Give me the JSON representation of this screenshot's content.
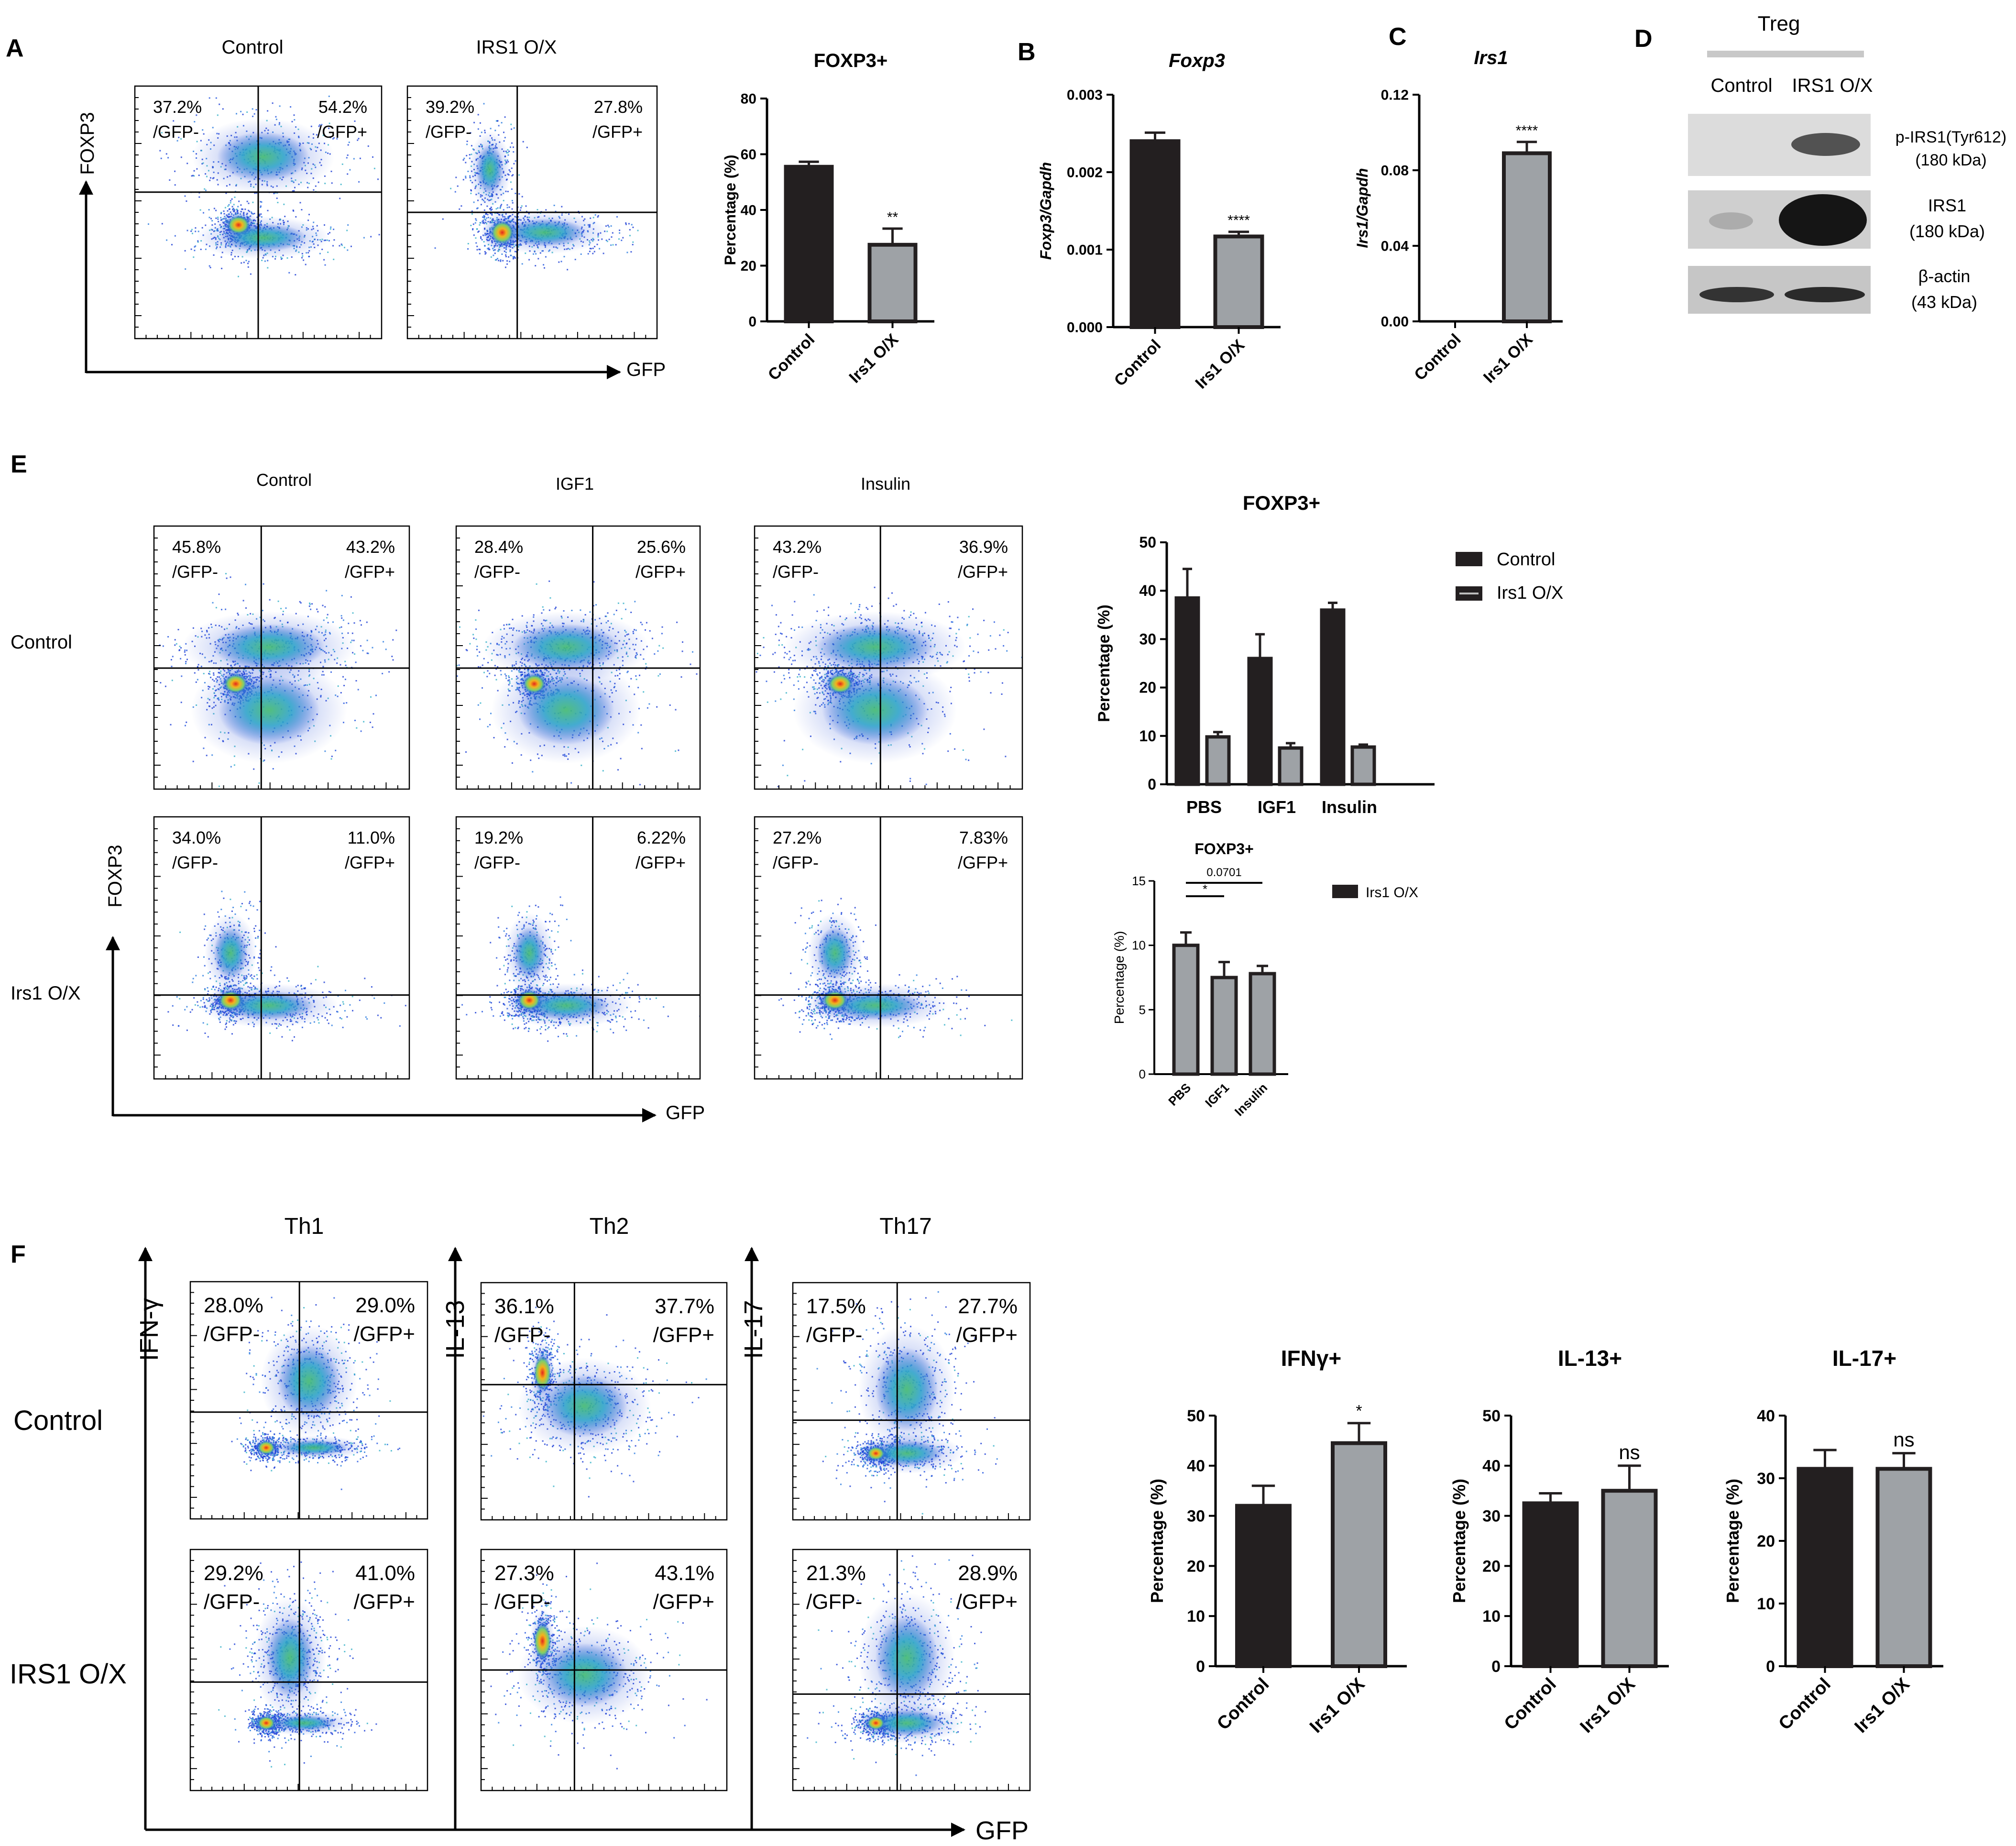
{
  "panel_labels": {
    "a": "A",
    "b": "B",
    "c": "C",
    "d": "D",
    "e": "E",
    "f": "F"
  },
  "axis_texts": {
    "foxp3": "FOXP3",
    "gfp": "GFP",
    "ifng": "IFN-γ",
    "il13": "IL-13",
    "il17": "IL-17",
    "control": "Control",
    "irs1_ox_caps": "IRS1 O/X",
    "irs1_ox": "Irs1 O/X",
    "igf1": "IGF1",
    "insulin": "Insulin",
    "th1": "Th1",
    "th2": "Th2",
    "th17": "Th17"
  },
  "flow": {
    "A": [
      {
        "title": "Control",
        "q1": "37.2%",
        "q1b": "/GFP-",
        "q2": "54.2%",
        "q2b": "/GFP+"
      },
      {
        "title": "IRS1 O/X",
        "q1": "39.2%",
        "q1b": "/GFP-",
        "q2": "27.8%",
        "q2b": "/GFP+"
      }
    ],
    "E": [
      {
        "q1": "45.8%",
        "q1b": "/GFP-",
        "q2": "43.2%",
        "q2b": "/GFP+"
      },
      {
        "q1": "28.4%",
        "q1b": "/GFP-",
        "q2": "25.6%",
        "q2b": "/GFP+"
      },
      {
        "q1": "43.2%",
        "q1b": "/GFP-",
        "q2": "36.9%",
        "q2b": "/GFP+"
      },
      {
        "q1": "34.0%",
        "q1b": "/GFP-",
        "q2": "11.0%",
        "q2b": "/GFP+"
      },
      {
        "q1": "19.2%",
        "q1b": "/GFP-",
        "q2": "6.22%",
        "q2b": "/GFP+"
      },
      {
        "q1": "27.2%",
        "q1b": "/GFP-",
        "q2": "7.83%",
        "q2b": "/GFP+"
      }
    ],
    "F": [
      {
        "q1": "28.0%",
        "q1b": "/GFP-",
        "q2": "29.0%",
        "q2b": "/GFP+"
      },
      {
        "q1": "36.1%",
        "q1b": "/GFP-",
        "q2": "37.7%",
        "q2b": "/GFP+"
      },
      {
        "q1": "17.5%",
        "q1b": "/GFP-",
        "q2": "27.7%",
        "q2b": "/GFP+"
      },
      {
        "q1": "29.2%",
        "q1b": "/GFP-",
        "q2": "41.0%",
        "q2b": "/GFP+"
      },
      {
        "q1": "27.3%",
        "q1b": "/GFP-",
        "q2": "43.1%",
        "q2b": "/GFP+"
      },
      {
        "q1": "21.3%",
        "q1b": "/GFP-",
        "q2": "28.9%",
        "q2b": "/GFP+"
      }
    ]
  },
  "western": {
    "title": "Treg",
    "lanes": [
      "Control",
      "IRS1 O/X"
    ],
    "bands": [
      {
        "name": "p-IRS1(Tyr612)",
        "size": "(180 kDa)"
      },
      {
        "name": "IRS1",
        "size": "(180 kDa)"
      },
      {
        "name": "β-actin",
        "size": "(43 kDa)"
      }
    ]
  },
  "chart_data": [
    {
      "id": "A",
      "type": "bar",
      "title": "FOXP3+",
      "ylabel": "Percentage (%)",
      "categories": [
        "Control",
        "Irs1 O/X"
      ],
      "values": [
        55.5,
        27.5
      ],
      "errors": [
        1.8,
        5.8
      ],
      "ylim": [
        0,
        80
      ],
      "yticks": [
        "0",
        "20",
        "40",
        "60",
        "80"
      ],
      "sig": [
        "",
        "**"
      ]
    },
    {
      "id": "B",
      "type": "bar",
      "title": "Foxp3",
      "ylabel": "Foxp3/Gapdh",
      "categories": [
        "Control",
        "Irs1 O/X"
      ],
      "values": [
        0.0024,
        0.00117
      ],
      "errors": [
        0.00011,
        6e-05
      ],
      "ylim": [
        0,
        0.003
      ],
      "yticks": [
        "0.000",
        "0.001",
        "0.002",
        "0.003"
      ],
      "sig": [
        "",
        "****"
      ]
    },
    {
      "id": "C",
      "type": "bar",
      "title": "Irs1",
      "ylabel": "Irs1/Gapdh",
      "categories": [
        "Control",
        "Irs1 O/X"
      ],
      "values": [
        0,
        0.089
      ],
      "errors": [
        0,
        0.006
      ],
      "ylim": [
        0,
        0.12
      ],
      "yticks": [
        "0.00",
        "0.04",
        "0.08",
        "0.12"
      ],
      "sig": [
        "",
        "****"
      ]
    },
    {
      "id": "E1",
      "type": "bar",
      "title": "FOXP3+",
      "ylabel": "Percentage (%)",
      "categories": [
        "PBS",
        "IGF1",
        "Insulin"
      ],
      "series": [
        {
          "name": "Control",
          "values": [
            38.5,
            26,
            36
          ],
          "errors": [
            6,
            5,
            1.5
          ]
        },
        {
          "name": "Irs1 O/X",
          "values": [
            9.8,
            7.5,
            7.7
          ],
          "errors": [
            1,
            1,
            0.5
          ]
        }
      ],
      "ylim": [
        0,
        50
      ],
      "yticks": [
        "0",
        "10",
        "20",
        "30",
        "40",
        "50"
      ]
    },
    {
      "id": "E2",
      "type": "bar",
      "title": "FOXP3+",
      "ylabel": "Percentage (%)",
      "categories": [
        "PBS",
        "IGF1",
        "Insulin"
      ],
      "series": [
        {
          "name": "Irs1 O/X",
          "values": [
            10,
            7.5,
            7.8
          ],
          "errors": [
            1,
            1.2,
            0.6
          ]
        }
      ],
      "ylim": [
        0,
        15
      ],
      "yticks": [
        "0",
        "5",
        "10",
        "15"
      ],
      "annotations": [
        "*",
        "0.0701"
      ]
    },
    {
      "id": "F1",
      "type": "bar",
      "title": "IFNγ+",
      "ylabel": "Percentage (%)",
      "categories": [
        "Control",
        "Irs1 O/X"
      ],
      "values": [
        32,
        44.5
      ],
      "errors": [
        4,
        4
      ],
      "ylim": [
        0,
        50
      ],
      "yticks": [
        "0",
        "10",
        "20",
        "30",
        "40",
        "50"
      ],
      "sig": [
        "",
        "*"
      ]
    },
    {
      "id": "F2",
      "type": "bar",
      "title": "IL-13+",
      "ylabel": "Percentage (%)",
      "categories": [
        "Control",
        "Irs1 O/X"
      ],
      "values": [
        32.5,
        35
      ],
      "errors": [
        2,
        5
      ],
      "ylim": [
        0,
        50
      ],
      "yticks": [
        "0",
        "10",
        "20",
        "30",
        "40",
        "50"
      ],
      "sig": [
        "",
        "ns"
      ]
    },
    {
      "id": "F3",
      "type": "bar",
      "title": "IL-17+",
      "ylabel": "Percentage (%)",
      "categories": [
        "Control",
        "Irs1 O/X"
      ],
      "values": [
        31.5,
        31.5
      ],
      "errors": [
        3,
        2.5
      ],
      "ylim": [
        0,
        40
      ],
      "yticks": [
        "0",
        "10",
        "20",
        "30",
        "40"
      ],
      "sig": [
        "",
        "ns"
      ]
    }
  ]
}
